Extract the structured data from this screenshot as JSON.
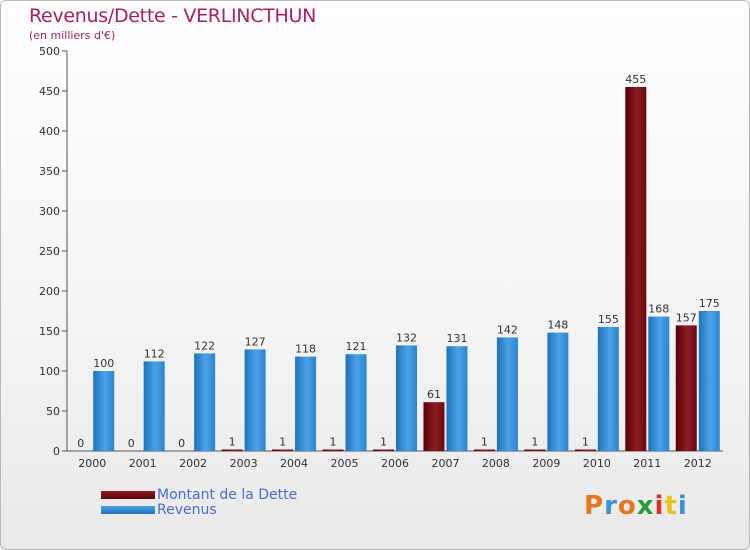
{
  "chart_data": {
    "type": "bar",
    "title": "Revenus/Dette - VERLINCTHUN",
    "subtitle": "(en milliers d'€)",
    "categories": [
      "2000",
      "2001",
      "2002",
      "2003",
      "2004",
      "2005",
      "2006",
      "2007",
      "2008",
      "2009",
      "2010",
      "2011",
      "2012"
    ],
    "series": [
      {
        "name": "Montant de la Dette",
        "color": "#7a0d14",
        "values": [
          0,
          0,
          0,
          1,
          1,
          1,
          1,
          61,
          1,
          1,
          1,
          455,
          157
        ]
      },
      {
        "name": "Revenus",
        "color": "#3a93d8",
        "values": [
          100,
          112,
          122,
          127,
          118,
          121,
          132,
          131,
          142,
          148,
          155,
          168,
          175
        ]
      }
    ],
    "ylim": [
      0,
      500
    ],
    "yticks": [
      0,
      50,
      100,
      150,
      200,
      250,
      300,
      350,
      400,
      450,
      500
    ],
    "grid": false,
    "legend_position": "bottom-left"
  },
  "brand": {
    "logo_text": "Proxiti"
  }
}
